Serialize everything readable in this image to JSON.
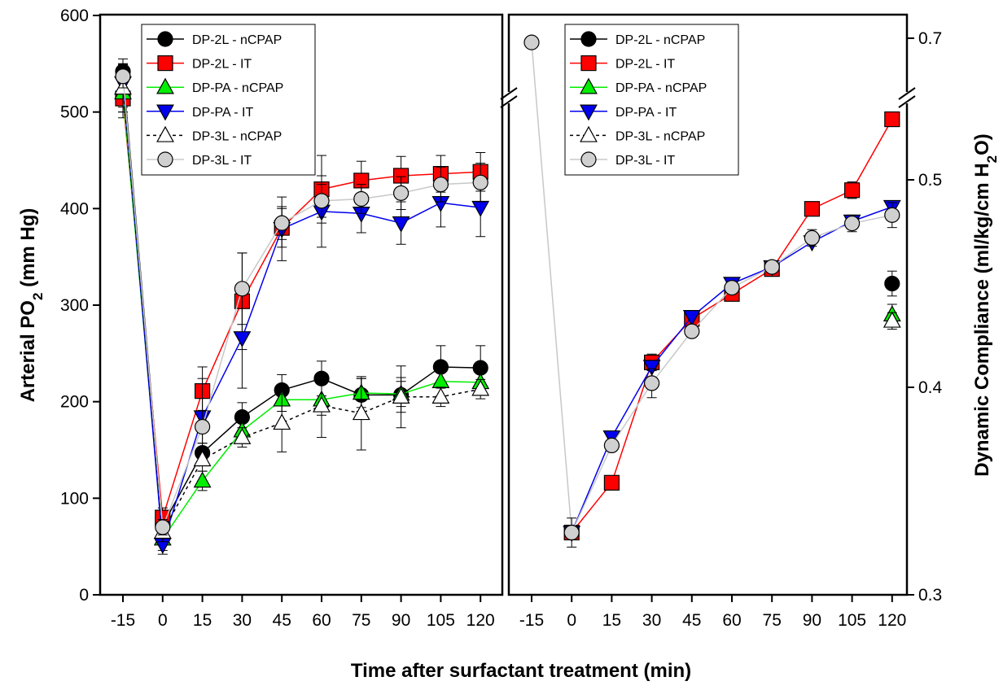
{
  "figure": {
    "xlabel": "Time after surfactant treatment (min)"
  },
  "chart_data": [
    {
      "type": "line",
      "ylabel": "Arterial PO",
      "ylabel_sub": "2",
      "ylabel_unit": " (mm Hg)",
      "x": [
        "-15",
        "0",
        "15",
        "30",
        "45",
        "60",
        "75",
        "90",
        "105",
        "120"
      ],
      "ylim": [
        0,
        600
      ],
      "yticks": [
        "0",
        "100",
        "200",
        "300",
        "400",
        "500",
        "600"
      ],
      "legend_position": "top-right",
      "series": [
        {
          "name": "DP-2L - nCPAP",
          "marker": "circle",
          "fill": "#000000",
          "line": "#000000",
          "dash": "",
          "values": [
            542,
            72,
            147,
            184,
            212,
            224,
            207,
            207,
            236,
            235
          ],
          "err": [
            8,
            10,
            10,
            15,
            16,
            18,
            17,
            18,
            22,
            23
          ]
        },
        {
          "name": "DP-2L - IT",
          "marker": "square",
          "fill": "#ff0000",
          "line": "#ff0000",
          "dash": "",
          "values": [
            514,
            80,
            211,
            304,
            380,
            420,
            429,
            434,
            436,
            438
          ],
          "err": [
            20,
            10,
            25,
            50,
            20,
            35,
            20,
            20,
            19,
            20
          ]
        },
        {
          "name": "DP-PA - nCPAP",
          "marker": "triangle-up",
          "fill": "#00ee00",
          "line": "#00ee00",
          "dash": "",
          "values": [
            520,
            58,
            118,
            170,
            202,
            202,
            209,
            208,
            221,
            220
          ],
          "err": [
            20,
            12,
            10,
            12,
            12,
            16,
            15,
            13,
            15,
            13
          ]
        },
        {
          "name": "DP-PA - IT",
          "marker": "triangle-down",
          "fill": "#0000ee",
          "line": "#0000ee",
          "dash": "",
          "values": [
            530,
            52,
            184,
            266,
            379,
            397,
            395,
            385,
            406,
            401
          ],
          "err": [
            25,
            10,
            40,
            52,
            33,
            37,
            20,
            22,
            25,
            30
          ]
        },
        {
          "name": "DP-3L - nCPAP",
          "marker": "triangle-up",
          "fill": "#ffffff",
          "line": "#000000",
          "dash": "4,4",
          "values": [
            525,
            65,
            140,
            163,
            178,
            196,
            188,
            205,
            205,
            213
          ],
          "err": [
            25,
            10,
            12,
            10,
            30,
            33,
            38,
            32,
            10,
            10
          ]
        },
        {
          "name": "DP-3L - IT",
          "marker": "circle",
          "fill": "#d0d0d0",
          "line": "#c8c8c8",
          "dash": "",
          "values": [
            537,
            70,
            174,
            317,
            385,
            408,
            410,
            416,
            425,
            427
          ],
          "err": [
            12,
            8,
            17,
            37,
            17,
            17,
            15,
            17,
            18,
            20
          ]
        }
      ]
    },
    {
      "type": "line",
      "ylabel": "Dynamic Compliance (ml/kg/cm H",
      "ylabel_sub": "2",
      "ylabel_unit": "O)",
      "x": [
        "-15",
        "0",
        "15",
        "30",
        "45",
        "60",
        "75",
        "90",
        "105",
        "120"
      ],
      "ylim": [
        0.3,
        0.7
      ],
      "ybreak": true,
      "yticks": [
        "0.3",
        "0.4",
        "0.5",
        "0.7"
      ],
      "legend_position": "top-right",
      "series": [
        {
          "name": "DP-2L - nCPAP",
          "marker": "circle",
          "fill": "#000000",
          "line": "#000000",
          "dash": "",
          "values": [
            null,
            null,
            null,
            null,
            null,
            null,
            null,
            null,
            null,
            0.45
          ],
          "err": [
            0,
            0,
            0,
            0,
            0,
            0,
            0,
            0,
            0,
            0.006
          ]
        },
        {
          "name": "DP-2L - IT",
          "marker": "square",
          "fill": "#ff0000",
          "line": "#ff0000",
          "dash": "",
          "values": [
            null,
            0.33,
            0.354,
            0.412,
            0.433,
            0.445,
            0.457,
            0.486,
            0.495,
            0.506
          ],
          "err": [
            0,
            0,
            0,
            0.004,
            0,
            0,
            0,
            0.003,
            0.004,
            0.005
          ]
        },
        {
          "name": "DP-PA - nCPAP",
          "marker": "triangle-up",
          "fill": "#00ee00",
          "line": "#00ee00",
          "dash": "",
          "values": [
            null,
            null,
            null,
            null,
            null,
            null,
            null,
            null,
            null,
            0.435
          ],
          "err": [
            0,
            0,
            0,
            0,
            0,
            0,
            0,
            0,
            0,
            0.005
          ]
        },
        {
          "name": "DP-PA - IT",
          "marker": "triangle-down",
          "fill": "#0000ee",
          "line": "#0000ee",
          "dash": "",
          "values": [
            null,
            0.33,
            0.376,
            0.41,
            0.434,
            0.45,
            0.458,
            0.47,
            0.48,
            0.487
          ],
          "err": [
            0,
            0,
            0,
            0,
            0,
            0,
            0,
            0,
            0,
            0
          ]
        },
        {
          "name": "DP-3L - nCPAP",
          "marker": "triangle-up",
          "fill": "#ffffff",
          "line": "#000000",
          "dash": "4,4",
          "values": [
            null,
            null,
            null,
            null,
            null,
            null,
            null,
            null,
            null,
            0.432
          ],
          "err": [
            0,
            0,
            0,
            0,
            0,
            0,
            0,
            0,
            0,
            0.004
          ]
        },
        {
          "name": "DP-3L - IT",
          "marker": "circle",
          "fill": "#d0d0d0",
          "line": "#c8c8c8",
          "dash": "",
          "values": [
            0.69,
            0.33,
            0.372,
            0.402,
            0.427,
            0.448,
            0.458,
            0.472,
            0.479,
            0.483
          ],
          "err": [
            0.007,
            0.007,
            0,
            0.007,
            0,
            0,
            0,
            0.004,
            0.004,
            0.006
          ]
        }
      ]
    }
  ]
}
